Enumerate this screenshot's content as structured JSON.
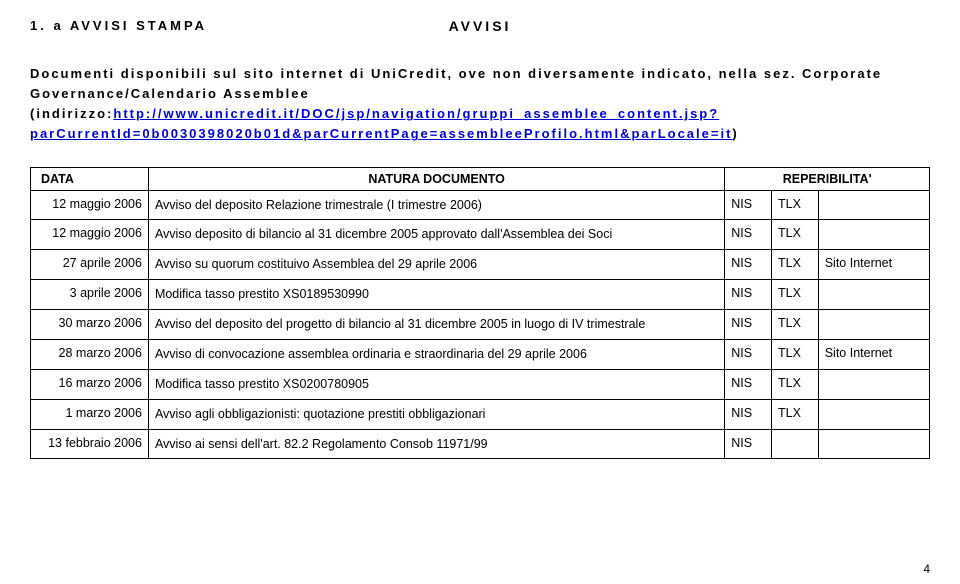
{
  "header": {
    "title_center": "AVVISI",
    "title_left": "1. a AVVISI STAMPA"
  },
  "intro": {
    "before": "Documenti disponibili sul sito internet di UniCredit, ove non diversamente indicato, nella sez. Corporate Governance/Calendario Assemblee (indirizzo:",
    "link_text": "http://www.unicredit.it/DOC/jsp/navigation/gruppi_assemblee_content.jsp?parCurrentId=0b0030398020b01d&parCurrentPage=assembleeProfilo.html&parLocale=it",
    "after": ")"
  },
  "table": {
    "headers": {
      "data": "DATA",
      "natura": "NATURA DOCUMENTO",
      "rep": "REPERIBILITA'"
    },
    "rows": [
      {
        "date": "12 maggio 2006",
        "doc": "Avviso del deposito Relazione trimestrale (I trimestre 2006)",
        "nis": "NIS",
        "tlx": "TLX",
        "site": ""
      },
      {
        "date": "12 maggio 2006",
        "doc": "Avviso deposito di bilancio al 31 dicembre 2005 approvato dall'Assemblea dei Soci",
        "nis": "NIS",
        "tlx": "TLX",
        "site": ""
      },
      {
        "date": "27 aprile 2006",
        "doc": "Avviso su quorum costituivo Assemblea del 29 aprile 2006",
        "nis": "NIS",
        "tlx": "TLX",
        "site": "Sito Internet"
      },
      {
        "date": "3 aprile 2006",
        "doc": "Modifica tasso prestito XS0189530990",
        "nis": "NIS",
        "tlx": "TLX",
        "site": ""
      },
      {
        "date": "30 marzo 2006",
        "doc": "Avviso del deposito del progetto di bilancio al 31 dicembre 2005 in luogo di IV trimestrale",
        "nis": "NIS",
        "tlx": "TLX",
        "site": ""
      },
      {
        "date": "28 marzo 2006",
        "doc": "Avviso di convocazione assemblea ordinaria e straordinaria del 29 aprile 2006",
        "nis": "NIS",
        "tlx": "TLX",
        "site": "Sito Internet"
      },
      {
        "date": "16 marzo 2006",
        "doc": "Modifica tasso prestito XS0200780905",
        "nis": "NIS",
        "tlx": "TLX",
        "site": ""
      },
      {
        "date": "1 marzo 2006",
        "doc": "Avviso agli obbligazionisti: quotazione prestiti obbligazionari",
        "nis": "NIS",
        "tlx": "TLX",
        "site": ""
      },
      {
        "date": "13 febbraio 2006",
        "doc": "Avviso ai sensi dell'art. 82.2 Regolamento Consob 11971/99",
        "nis": "NIS",
        "tlx": "",
        "site": ""
      }
    ]
  },
  "page_number": "4"
}
